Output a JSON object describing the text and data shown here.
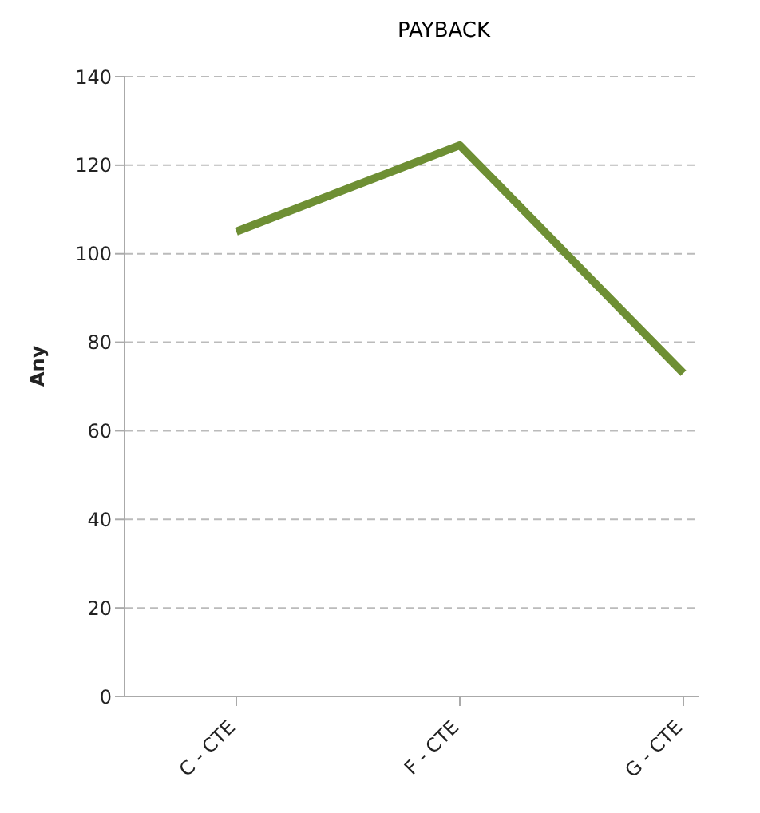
{
  "chart_data": {
    "type": "line",
    "title": "PAYBACK",
    "ylabel": "Any",
    "categories": [
      "C - CTE",
      "F - CTE",
      "G - CTE"
    ],
    "series": [
      {
        "color": "#6e8f34",
        "values": [
          105,
          124.5,
          73
        ]
      }
    ],
    "ylim": [
      0,
      140
    ],
    "yticks": [
      0,
      20,
      40,
      60,
      80,
      100,
      120,
      140
    ],
    "grid": "y",
    "marker": "none",
    "line_style": "solid"
  }
}
